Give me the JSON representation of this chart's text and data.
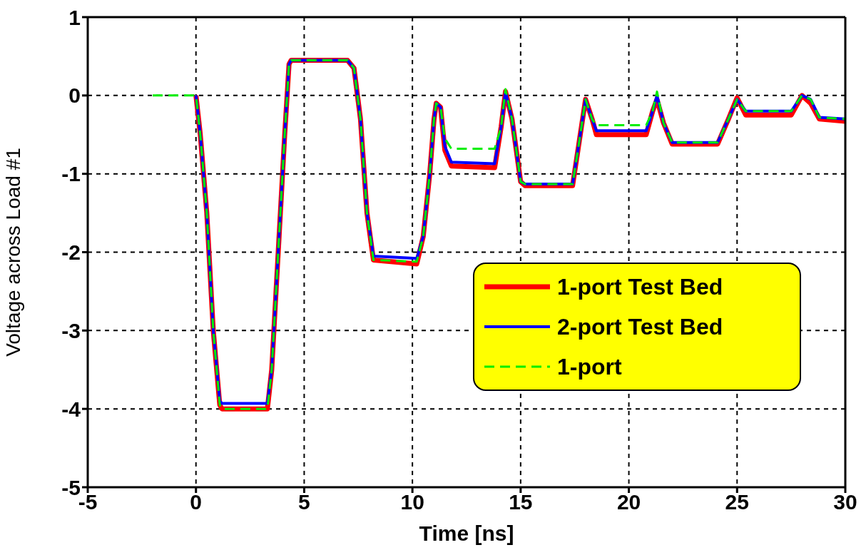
{
  "chart_data": {
    "type": "line",
    "xlabel": "Time [ns]",
    "ylabel": "Voltage across Load #1",
    "xlim": [
      -5,
      30
    ],
    "xticks": [
      -5,
      0,
      5,
      10,
      15,
      20,
      25,
      30
    ],
    "ylim": [
      -5,
      1
    ],
    "yticks": [
      -5,
      -4,
      -3,
      -2,
      -1,
      0,
      1
    ],
    "grid": true,
    "legend": "right",
    "marker": "none",
    "series": [
      {
        "name": "1-port Test Bed",
        "color": "#ff0000",
        "line_style": "solid",
        "x": [
          0,
          0.2,
          0.5,
          0.8,
          1.1,
          1.2,
          3.3,
          3.5,
          3.8,
          4.1,
          4.3,
          4.4,
          7.0,
          7.3,
          7.6,
          7.9,
          8.2,
          10.2,
          10.5,
          10.8,
          11.0,
          11.1,
          11.3,
          11.5,
          11.8,
          13.8,
          14.1,
          14.3,
          14.6,
          15.0,
          15.2,
          17.4,
          17.7,
          18.0,
          18.3,
          18.5,
          20.8,
          21.1,
          21.3,
          21.6,
          22.0,
          24.1,
          24.6,
          25.0,
          25.4,
          27.5,
          28.0,
          28.4,
          28.8,
          30
        ],
        "values": [
          0,
          -0.5,
          -1.5,
          -3,
          -3.95,
          -4.0,
          -4.0,
          -3.5,
          -2,
          -0.5,
          0.4,
          0.45,
          0.45,
          0.35,
          -0.3,
          -1.5,
          -2.1,
          -2.15,
          -1.8,
          -1,
          -0.3,
          -0.1,
          -0.15,
          -0.7,
          -0.9,
          -0.92,
          -0.4,
          0.05,
          -0.3,
          -1.1,
          -1.15,
          -1.15,
          -0.6,
          -0.05,
          -0.3,
          -0.5,
          -0.5,
          -0.2,
          -0.05,
          -0.35,
          -0.62,
          -0.62,
          -0.3,
          -0.03,
          -0.25,
          -0.25,
          0,
          -0.1,
          -0.3,
          -0.33
        ]
      },
      {
        "name": "2-port Test Bed",
        "color": "#0000ff",
        "line_style": "solid",
        "x": [
          0,
          0.2,
          0.5,
          0.8,
          1.1,
          1.2,
          3.3,
          3.5,
          3.8,
          4.1,
          4.3,
          4.4,
          7.0,
          7.3,
          7.6,
          7.9,
          8.2,
          10.2,
          10.5,
          10.8,
          11.0,
          11.1,
          11.3,
          11.5,
          11.8,
          13.8,
          14.1,
          14.3,
          14.6,
          15.0,
          15.2,
          17.4,
          17.7,
          18.0,
          18.3,
          18.5,
          20.8,
          21.1,
          21.3,
          21.6,
          22.0,
          24.1,
          24.6,
          25.0,
          25.4,
          27.5,
          28.0,
          28.4,
          28.8,
          30
        ],
        "values": [
          0,
          -0.5,
          -1.5,
          -3,
          -3.9,
          -3.93,
          -3.93,
          -3.5,
          -2,
          -0.5,
          0.4,
          0.45,
          0.45,
          0.35,
          -0.3,
          -1.5,
          -2.05,
          -2.08,
          -1.8,
          -1,
          -0.3,
          -0.1,
          -0.15,
          -0.65,
          -0.85,
          -0.87,
          -0.4,
          0.05,
          -0.3,
          -1.1,
          -1.13,
          -1.13,
          -0.6,
          -0.05,
          -0.3,
          -0.45,
          -0.45,
          -0.2,
          0,
          -0.35,
          -0.6,
          -0.6,
          -0.3,
          -0.05,
          -0.2,
          -0.2,
          0,
          -0.05,
          -0.28,
          -0.3
        ]
      },
      {
        "name": "1-port",
        "color": "#00ee00",
        "line_style": "dashed",
        "x": [
          -2,
          0,
          0.2,
          0.5,
          0.8,
          1.1,
          1.2,
          3.3,
          3.5,
          3.8,
          4.1,
          4.3,
          4.4,
          7.0,
          7.3,
          7.6,
          7.9,
          8.2,
          10.2,
          10.5,
          10.8,
          11.0,
          11.1,
          11.3,
          11.5,
          11.8,
          13.8,
          14.1,
          14.3,
          14.6,
          15.0,
          15.2,
          17.4,
          17.7,
          18.0,
          18.3,
          18.5,
          20.8,
          21.1,
          21.3,
          21.6,
          22.0,
          24.1,
          24.6,
          25.0,
          25.4,
          27.5,
          28.0,
          28.4,
          28.8,
          30
        ],
        "values": [
          0,
          0,
          -0.5,
          -1.5,
          -3,
          -3.95,
          -4.0,
          -4.0,
          -3.5,
          -2,
          -0.5,
          0.4,
          0.45,
          0.45,
          0.35,
          -0.3,
          -1.5,
          -2.1,
          -2.12,
          -1.8,
          -1,
          -0.3,
          -0.1,
          -0.15,
          -0.55,
          -0.68,
          -0.68,
          -0.4,
          0.08,
          -0.3,
          -1.1,
          -1.13,
          -1.13,
          -0.6,
          -0.05,
          -0.3,
          -0.38,
          -0.38,
          -0.2,
          0.05,
          -0.35,
          -0.6,
          -0.6,
          -0.3,
          -0.05,
          -0.2,
          -0.2,
          0,
          -0.05,
          -0.28,
          -0.3
        ]
      }
    ]
  }
}
